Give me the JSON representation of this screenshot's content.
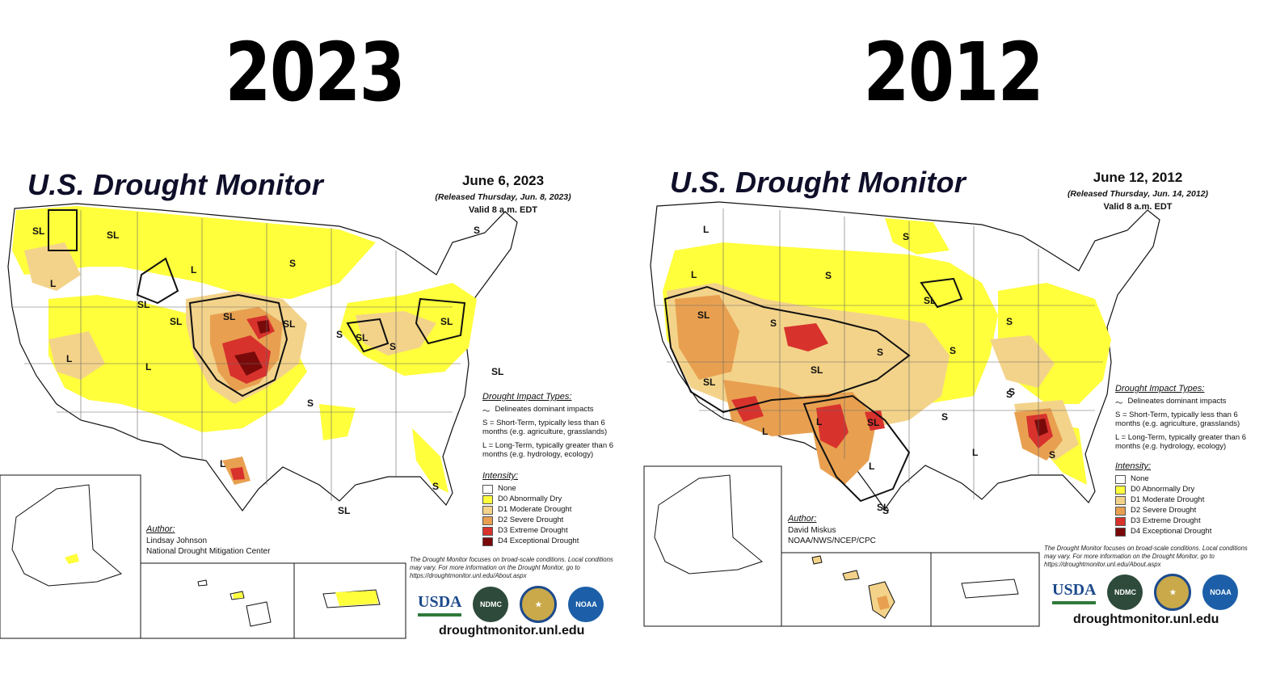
{
  "years": {
    "left": "2023",
    "right": "2012"
  },
  "colors": {
    "none": "#ffffff",
    "d0": "#ffff3c",
    "d1": "#f3d38a",
    "d2": "#e8a050",
    "d3": "#d8322d",
    "d4": "#7a0a0a",
    "boundary": "#111111",
    "water": "#6aa6d8"
  },
  "left": {
    "title": "U.S. Drought Monitor",
    "date": "June 6, 2023",
    "released": "(Released Thursday, Jun. 8, 2023)",
    "valid": "Valid 8 a.m. EDT",
    "author_label": "Author:",
    "author_name": "Lindsay Johnson",
    "author_org": "National Drought Mitigation Center",
    "impact_labels": [
      "SL",
      "SL",
      "L",
      "SL",
      "L",
      "SL",
      "S",
      "SL",
      "SL",
      "S",
      "SL",
      "L",
      "L",
      "S",
      "S",
      "SL",
      "SL",
      "S",
      "L",
      "S",
      "SL",
      "S",
      "S"
    ]
  },
  "right": {
    "title": "U.S. Drought Monitor",
    "date": "June 12, 2012",
    "released": "(Released Thursday, Jun. 14, 2012)",
    "valid": "Valid 8 a.m. EDT",
    "author_label": "Author:",
    "author_name": "David Miskus",
    "author_org": "NOAA/NWS/NCEP/CPC",
    "impact_labels": [
      "L",
      "S",
      "L",
      "S",
      "SL",
      "S",
      "SL",
      "S",
      "S",
      "SL",
      "S",
      "S",
      "L",
      "SL",
      "S",
      "L",
      "SL",
      "S",
      "L",
      "S",
      "L",
      "SL",
      "S",
      "L",
      "S"
    ]
  },
  "legend": {
    "impact_header": "Drought Impact Types:",
    "delineates": "Delineates dominant impacts",
    "short_term": "S = Short-Term, typically less than 6 months (e.g. agriculture, grasslands)",
    "long_term": "L = Long-Term, typically greater than 6 months (e.g. hydrology, ecology)",
    "intensity_header": "Intensity:",
    "intensity": [
      "None",
      "D0 Abnormally Dry",
      "D1 Moderate Drought",
      "D2 Severe Drought",
      "D3 Extreme Drought",
      "D4 Exceptional Drought"
    ]
  },
  "footer": {
    "note": "The Drought Monitor focuses on broad-scale conditions. Local conditions may vary. For more information on the Drought Monitor, go to https://droughtmonitor.unl.edu/About.aspx",
    "usda": "USDA",
    "ndmc": "NDMC",
    "noaa": "NOAA",
    "url": "droughtmonitor.unl.edu"
  }
}
